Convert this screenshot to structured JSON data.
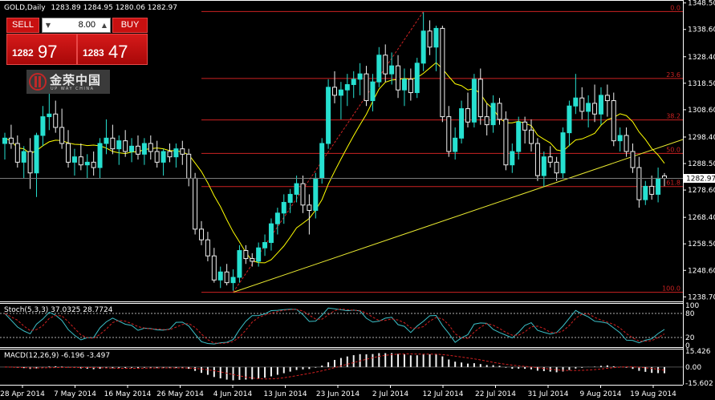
{
  "chart_title": "GOLD,Daily",
  "ohlc_header": {
    "open": "1283.89",
    "high": "1284.95",
    "low": "1280.06",
    "close": "1282.97"
  },
  "current_price_label": "1282.97",
  "trade_panel": {
    "sell_label": "SELL",
    "buy_label": "BUY",
    "lot_value": "8.00",
    "sell_price_small": "1282",
    "sell_price_big": "97",
    "buy_price_small": "1283",
    "buy_price_big": "47"
  },
  "logo": {
    "text": "金荣中国",
    "sub": "UP WAY CHINA"
  },
  "colors": {
    "bull": "#26e0d0",
    "bear": "#f0f0f0",
    "ma": "#ffff00",
    "fib": "#cc2222",
    "stoch_main": "#3cc0c8",
    "stoch_signal": "#d02020",
    "macd": "#f0f0f0",
    "macd_signal": "#d02020"
  },
  "price_axis": {
    "labels": [
      "1348.50",
      "1338.60",
      "1328.40",
      "1318.50",
      "1308.60",
      "1298.40",
      "1288.50",
      "1278.60",
      "1268.40",
      "1258.50",
      "1248.60",
      "1238.70"
    ]
  },
  "date_axis": {
    "labels": [
      "28 Apr 2014",
      "7 May 2014",
      "16 May 2014",
      "26 May 2014",
      "4 Jun 2014",
      "13 Jun 2014",
      "23 Jun 2014",
      "2 Jul 2014",
      "12 Jul 2014",
      "22 Jul 2014",
      "31 Jul 2014",
      "9 Aug 2014",
      "19 Aug 2014"
    ]
  },
  "fib_levels": [
    {
      "label": "0.0",
      "price": 1345.3
    },
    {
      "label": "23.6",
      "price": 1320.3
    },
    {
      "label": "38.2",
      "price": 1304.8
    },
    {
      "label": "50.0",
      "price": 1292.3
    },
    {
      "label": "61.8",
      "price": 1279.9
    },
    {
      "label": "100.0",
      "price": 1240.4
    }
  ],
  "stochastic": {
    "label": "Stoch(5,3,3) 37.0325 28.7724",
    "levels": [
      "100",
      "80",
      "20",
      "0"
    ]
  },
  "macd": {
    "label": "MACD(12,26,9) -6.196 -3.497",
    "levels": [
      "15.426",
      "0.00",
      "-15.602"
    ]
  },
  "chart_data": {
    "type": "candlestick",
    "title": "GOLD,Daily",
    "ylim": [
      1237.0,
      1349.0
    ],
    "series": [
      {
        "name": "GOLD,Daily",
        "ohlc": [
          [
            1296,
            1300,
            1290,
            1298
          ],
          [
            1298,
            1303,
            1294,
            1296
          ],
          [
            1296,
            1299,
            1287,
            1289
          ],
          [
            1289,
            1295,
            1283,
            1293
          ],
          [
            1293,
            1298,
            1279,
            1285
          ],
          [
            1285,
            1300,
            1276,
            1299
          ],
          [
            1299,
            1310,
            1295,
            1306
          ],
          [
            1306,
            1317,
            1301,
            1307
          ],
          [
            1307,
            1312,
            1300,
            1302
          ],
          [
            1302,
            1309,
            1294,
            1296
          ],
          [
            1296,
            1301,
            1287,
            1289
          ],
          [
            1289,
            1294,
            1284,
            1291
          ],
          [
            1291,
            1296,
            1286,
            1288
          ],
          [
            1288,
            1292,
            1283,
            1289
          ],
          [
            1289,
            1293,
            1284,
            1287
          ],
          [
            1287,
            1298,
            1283,
            1296
          ],
          [
            1296,
            1305,
            1292,
            1298
          ],
          [
            1298,
            1303,
            1292,
            1294
          ],
          [
            1294,
            1299,
            1288,
            1297
          ],
          [
            1297,
            1301,
            1291,
            1293
          ],
          [
            1293,
            1298,
            1289,
            1295
          ],
          [
            1295,
            1299,
            1290,
            1292
          ],
          [
            1292,
            1298,
            1288,
            1296
          ],
          [
            1296,
            1299,
            1290,
            1293
          ],
          [
            1293,
            1297,
            1287,
            1289
          ],
          [
            1289,
            1294,
            1284,
            1293
          ],
          [
            1293,
            1296,
            1289,
            1291
          ],
          [
            1291,
            1296,
            1287,
            1294
          ],
          [
            1294,
            1297,
            1288,
            1292
          ],
          [
            1292,
            1294,
            1280,
            1283
          ],
          [
            1283,
            1285,
            1262,
            1264
          ],
          [
            1264,
            1267,
            1258,
            1260
          ],
          [
            1260,
            1263,
            1252,
            1254
          ],
          [
            1254,
            1257,
            1244,
            1245
          ],
          [
            1245,
            1250,
            1242,
            1248
          ],
          [
            1248,
            1251,
            1243,
            1244
          ],
          [
            1244,
            1249,
            1241,
            1246
          ],
          [
            1246,
            1258,
            1244,
            1256
          ],
          [
            1256,
            1258,
            1251,
            1253
          ],
          [
            1253,
            1255,
            1250,
            1252
          ],
          [
            1252,
            1259,
            1250,
            1257
          ],
          [
            1257,
            1262,
            1254,
            1259
          ],
          [
            1259,
            1268,
            1256,
            1266
          ],
          [
            1266,
            1272,
            1262,
            1270
          ],
          [
            1270,
            1277,
            1266,
            1274
          ],
          [
            1274,
            1279,
            1270,
            1277
          ],
          [
            1277,
            1284,
            1274,
            1281
          ],
          [
            1281,
            1284,
            1270,
            1273
          ],
          [
            1273,
            1277,
            1262,
            1271
          ],
          [
            1271,
            1285,
            1268,
            1283
          ],
          [
            1283,
            1298,
            1281,
            1296
          ],
          [
            1296,
            1320,
            1294,
            1317
          ],
          [
            1317,
            1323,
            1311,
            1314
          ],
          [
            1314,
            1319,
            1305,
            1316
          ],
          [
            1316,
            1322,
            1310,
            1318
          ],
          [
            1318,
            1323,
            1313,
            1320
          ],
          [
            1320,
            1326,
            1314,
            1322
          ],
          [
            1322,
            1325,
            1310,
            1312
          ],
          [
            1312,
            1322,
            1308,
            1319
          ],
          [
            1319,
            1332,
            1317,
            1329
          ],
          [
            1329,
            1333,
            1319,
            1322
          ],
          [
            1322,
            1330,
            1318,
            1325
          ],
          [
            1325,
            1329,
            1313,
            1316
          ],
          [
            1316,
            1324,
            1310,
            1320
          ],
          [
            1320,
            1324,
            1312,
            1315
          ],
          [
            1315,
            1328,
            1313,
            1326
          ],
          [
            1326,
            1345,
            1323,
            1338
          ],
          [
            1338,
            1342,
            1329,
            1332
          ],
          [
            1332,
            1340,
            1323,
            1339
          ],
          [
            1339,
            1340,
            1304,
            1306
          ],
          [
            1306,
            1310,
            1291,
            1293
          ],
          [
            1293,
            1302,
            1290,
            1298
          ],
          [
            1298,
            1312,
            1296,
            1309
          ],
          [
            1309,
            1315,
            1302,
            1304
          ],
          [
            1304,
            1322,
            1302,
            1320
          ],
          [
            1320,
            1324,
            1303,
            1306
          ],
          [
            1306,
            1311,
            1299,
            1303
          ],
          [
            1303,
            1314,
            1300,
            1311
          ],
          [
            1311,
            1313,
            1303,
            1305
          ],
          [
            1305,
            1308,
            1286,
            1288
          ],
          [
            1288,
            1296,
            1285,
            1293
          ],
          [
            1293,
            1306,
            1290,
            1304
          ],
          [
            1304,
            1306,
            1296,
            1301
          ],
          [
            1301,
            1305,
            1293,
            1296
          ],
          [
            1296,
            1298,
            1282,
            1284
          ],
          [
            1284,
            1293,
            1280,
            1291
          ],
          [
            1291,
            1295,
            1287,
            1289
          ],
          [
            1289,
            1291,
            1282,
            1285
          ],
          [
            1285,
            1302,
            1283,
            1300
          ],
          [
            1300,
            1312,
            1295,
            1310
          ],
          [
            1310,
            1322,
            1307,
            1313
          ],
          [
            1313,
            1317,
            1305,
            1308
          ],
          [
            1308,
            1314,
            1302,
            1311
          ],
          [
            1311,
            1318,
            1304,
            1307
          ],
          [
            1307,
            1317,
            1303,
            1314
          ],
          [
            1314,
            1318,
            1306,
            1312
          ],
          [
            1312,
            1315,
            1295,
            1297
          ],
          [
            1297,
            1302,
            1293,
            1299
          ],
          [
            1299,
            1302,
            1291,
            1293
          ],
          [
            1293,
            1296,
            1285,
            1287
          ],
          [
            1287,
            1291,
            1272,
            1275
          ],
          [
            1275,
            1282,
            1273,
            1280
          ],
          [
            1280,
            1284,
            1275,
            1277
          ],
          [
            1277,
            1287,
            1274,
            1283
          ],
          [
            1283.89,
            1284.95,
            1280.06,
            1282.97
          ]
        ]
      }
    ]
  }
}
